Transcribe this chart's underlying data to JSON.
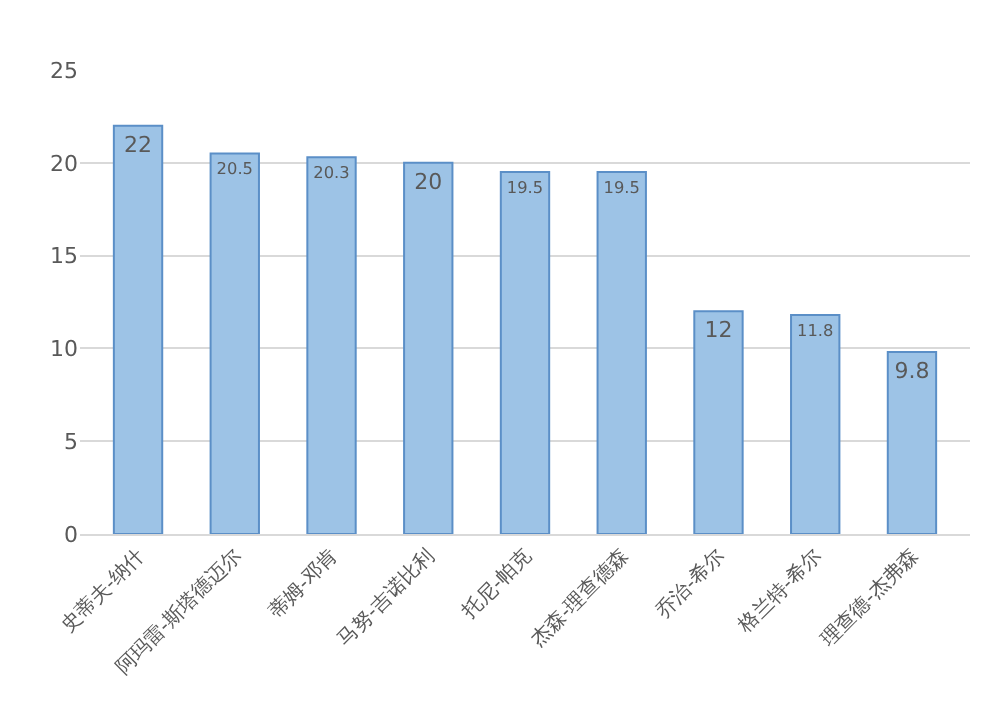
{
  "chart_data": {
    "type": "bar",
    "categories": [
      "史蒂夫-纳什",
      "阿玛雷-斯塔德迈尔",
      "蒂姆-邓肯",
      "马努-吉诺比利",
      "托尼-帕克",
      "杰森-理查德森",
      "乔治-希尔",
      "格兰特-希尔",
      "理查德-杰弗森"
    ],
    "values": [
      22,
      20.5,
      20.3,
      20,
      19.5,
      19.5,
      12,
      11.8,
      9.8
    ],
    "color": "#9dc3e6",
    "ylim": [
      0,
      25
    ],
    "yticks": [
      0,
      5,
      10,
      15,
      20,
      25
    ],
    "grid": "y",
    "data_labels": true,
    "legend": false
  }
}
